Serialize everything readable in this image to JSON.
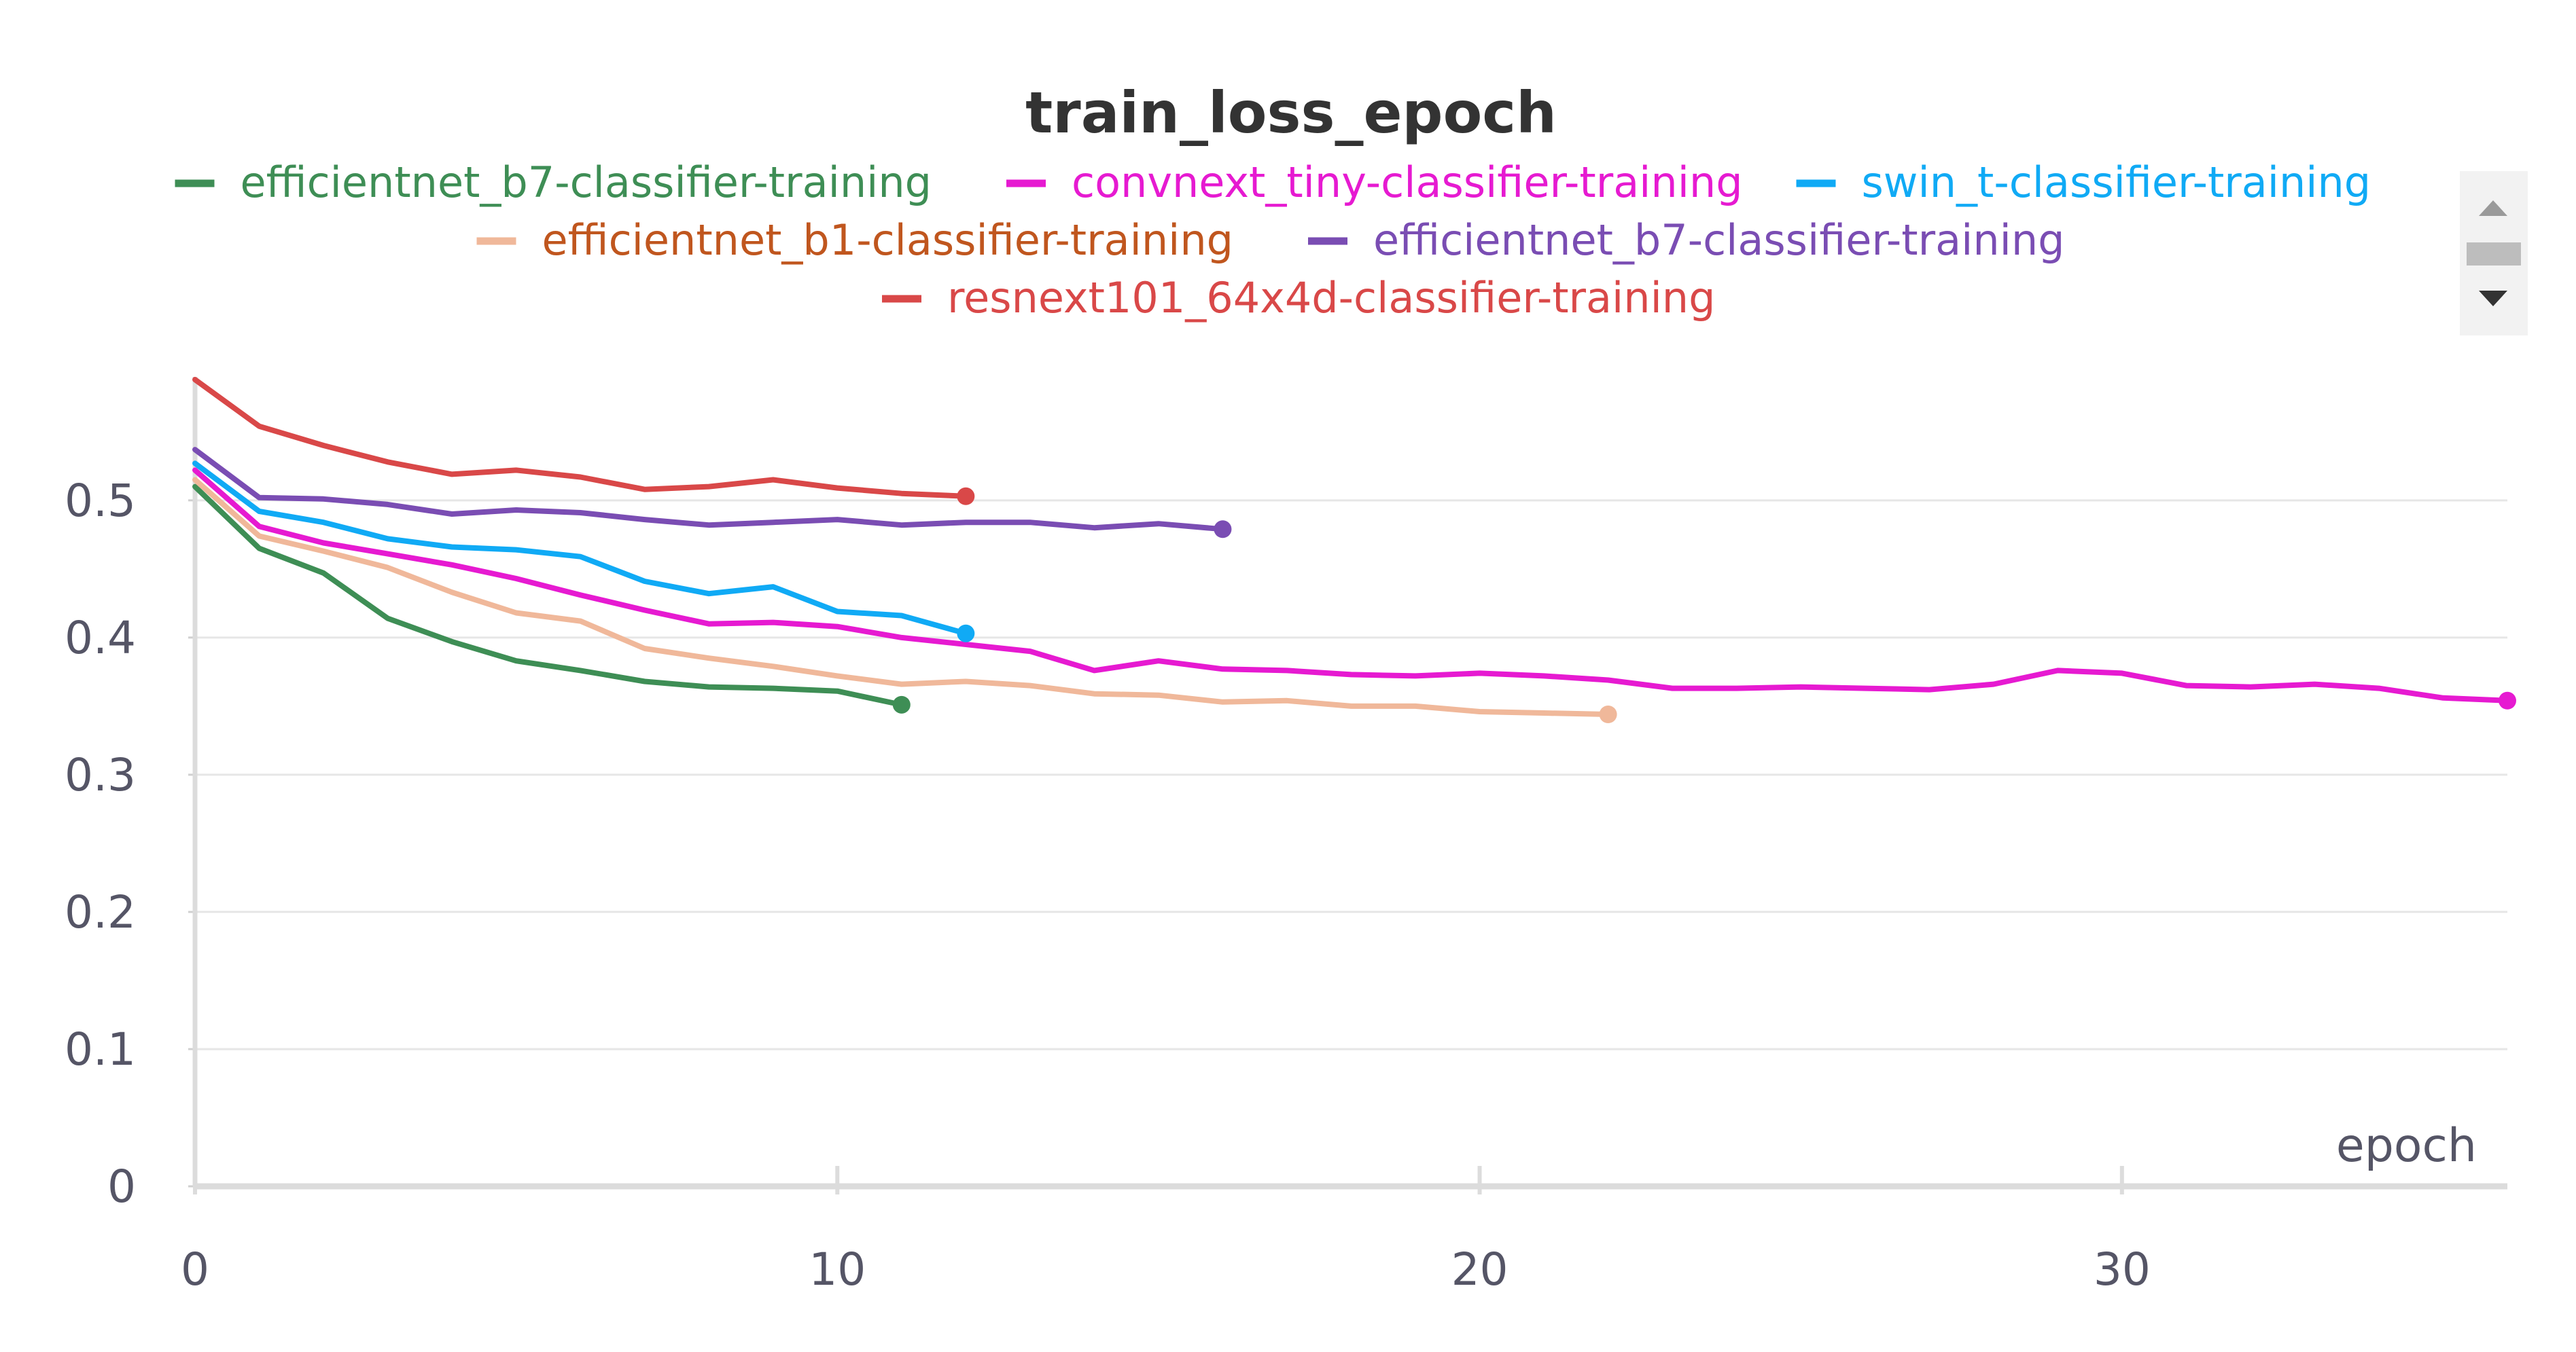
{
  "chart_data": {
    "type": "line",
    "title": "train_loss_epoch",
    "xlabel": "epoch",
    "ylabel": "",
    "xlim": [
      0,
      36
    ],
    "ylim": [
      0,
      0.59
    ],
    "x_ticks": [
      0,
      10,
      20,
      30
    ],
    "y_ticks": [
      0,
      0.1,
      0.2,
      0.3,
      0.4,
      0.5
    ],
    "x_tick_labels": [
      "0",
      "10",
      "20",
      "30"
    ],
    "y_tick_labels": [
      "0",
      "0.1",
      "0.2",
      "0.3",
      "0.4",
      "0.5"
    ],
    "grid": true,
    "legend_position": "top-center",
    "series": [
      {
        "name": "efficientnet_b7-classifier-training",
        "color": "#3e8e55",
        "legend_text_color": "#3e8e55",
        "x": [
          0,
          1,
          2,
          3,
          4,
          5,
          6,
          7,
          8,
          9,
          10,
          11
        ],
        "values": [
          0.51,
          0.465,
          0.447,
          0.414,
          0.397,
          0.383,
          0.376,
          0.368,
          0.364,
          0.363,
          0.361,
          0.351
        ]
      },
      {
        "name": "convnext_tiny-classifier-training",
        "color": "#e61ad1",
        "legend_text_color": "#e61ad1",
        "x": [
          0,
          1,
          2,
          3,
          4,
          5,
          6,
          7,
          8,
          9,
          10,
          11,
          12,
          13,
          14,
          15,
          16,
          17,
          18,
          19,
          20,
          21,
          22,
          23,
          24,
          25,
          26,
          27,
          28,
          29,
          30,
          31,
          32,
          33,
          34,
          35,
          36
        ],
        "values": [
          0.522,
          0.481,
          0.469,
          0.461,
          0.453,
          0.443,
          0.431,
          0.42,
          0.41,
          0.411,
          0.408,
          0.4,
          0.395,
          0.39,
          0.376,
          0.383,
          0.377,
          0.376,
          0.373,
          0.372,
          0.374,
          0.372,
          0.369,
          0.363,
          0.363,
          0.364,
          0.363,
          0.362,
          0.366,
          0.376,
          0.374,
          0.365,
          0.364,
          0.366,
          0.363,
          0.356,
          0.354
        ]
      },
      {
        "name": "swin_t-classifier-training",
        "color": "#10aaf5",
        "legend_text_color": "#10aaf5",
        "x": [
          0,
          1,
          2,
          3,
          4,
          5,
          6,
          7,
          8,
          9,
          10,
          11,
          12
        ],
        "values": [
          0.527,
          0.492,
          0.484,
          0.472,
          0.466,
          0.464,
          0.459,
          0.441,
          0.432,
          0.437,
          0.419,
          0.416,
          0.403
        ]
      },
      {
        "name": "efficientnet_b1-classifier-training",
        "color": "#f0b89a",
        "legend_text_color": "#c0561e",
        "x": [
          0,
          1,
          2,
          3,
          4,
          5,
          6,
          7,
          8,
          9,
          10,
          11,
          12,
          13,
          14,
          15,
          16,
          17,
          18,
          19,
          20,
          21,
          22
        ],
        "values": [
          0.515,
          0.474,
          0.463,
          0.451,
          0.433,
          0.418,
          0.412,
          0.392,
          0.385,
          0.379,
          0.372,
          0.366,
          0.368,
          0.365,
          0.359,
          0.358,
          0.353,
          0.354,
          0.35,
          0.35,
          0.346,
          0.345,
          0.344
        ]
      },
      {
        "name": "efficientnet_b7-classifier-training",
        "color": "#7a4db3",
        "legend_text_color": "#7a4db3",
        "x": [
          0,
          1,
          2,
          3,
          4,
          5,
          6,
          7,
          8,
          9,
          10,
          11,
          12,
          13,
          14,
          15,
          16
        ],
        "values": [
          0.537,
          0.502,
          0.501,
          0.497,
          0.49,
          0.493,
          0.491,
          0.486,
          0.482,
          0.484,
          0.486,
          0.482,
          0.484,
          0.484,
          0.48,
          0.483,
          0.479
        ]
      },
      {
        "name": "resnext101_64x4d-classifier-training",
        "color": "#d94848",
        "legend_text_color": "#d94848",
        "x": [
          0,
          1,
          2,
          3,
          4,
          5,
          6,
          7,
          8,
          9,
          10,
          11,
          12
        ],
        "values": [
          0.588,
          0.554,
          0.54,
          0.528,
          0.519,
          0.522,
          0.517,
          0.508,
          0.51,
          0.515,
          0.509,
          0.505,
          0.503
        ]
      }
    ]
  },
  "legend": {
    "rows": [
      [
        0,
        1,
        2
      ],
      [
        3,
        4
      ],
      [
        5
      ]
    ],
    "scroll_up_icon": "triangle-up-icon",
    "scroll_down_icon": "triangle-down-icon"
  }
}
